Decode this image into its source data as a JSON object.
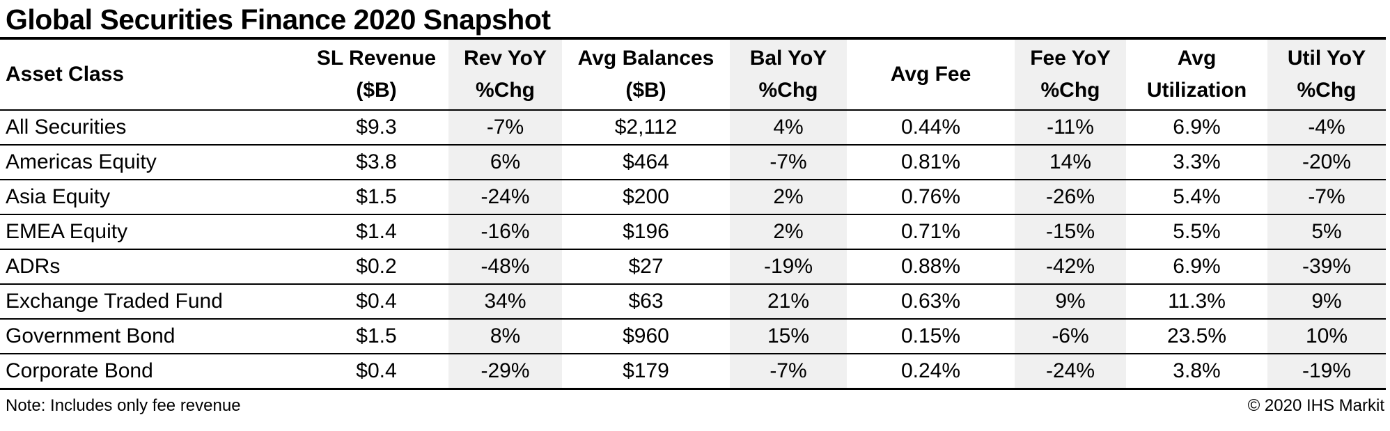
{
  "title": "Global Securities Finance 2020 Snapshot",
  "colors": {
    "background": "#ffffff",
    "text": "#000000",
    "border": "#000000",
    "shaded_column": "#f0f0f0"
  },
  "table": {
    "headers": [
      {
        "line1": "Asset Class",
        "line2": ""
      },
      {
        "line1": "SL Revenue",
        "line2": "($B)"
      },
      {
        "line1": "Rev YoY",
        "line2": "%Chg"
      },
      {
        "line1": "Avg Balances",
        "line2": "($B)"
      },
      {
        "line1": "Bal YoY",
        "line2": "%Chg"
      },
      {
        "line1": "Avg Fee",
        "line2": ""
      },
      {
        "line1": "Fee YoY",
        "line2": "%Chg"
      },
      {
        "line1": "Avg",
        "line2": "Utilization"
      },
      {
        "line1": "Util YoY",
        "line2": "%Chg"
      }
    ],
    "rows": [
      {
        "cells": [
          "All Securities",
          "$9.3",
          "-7%",
          "$2,112",
          "4%",
          "0.44%",
          "-11%",
          "6.9%",
          "-4%"
        ]
      },
      {
        "cells": [
          "Americas Equity",
          "$3.8",
          "6%",
          "$464",
          "-7%",
          "0.81%",
          "14%",
          "3.3%",
          "-20%"
        ]
      },
      {
        "cells": [
          "Asia Equity",
          "$1.5",
          "-24%",
          "$200",
          "2%",
          "0.76%",
          "-26%",
          "5.4%",
          "-7%"
        ]
      },
      {
        "cells": [
          "EMEA Equity",
          "$1.4",
          "-16%",
          "$196",
          "2%",
          "0.71%",
          "-15%",
          "5.5%",
          "5%"
        ]
      },
      {
        "cells": [
          "ADRs",
          "$0.2",
          "-48%",
          "$27",
          "-19%",
          "0.88%",
          "-42%",
          "6.9%",
          "-39%"
        ]
      },
      {
        "cells": [
          "Exchange Traded Fund",
          "$0.4",
          "34%",
          "$63",
          "21%",
          "0.63%",
          "9%",
          "11.3%",
          "9%"
        ]
      },
      {
        "cells": [
          "Government Bond",
          "$1.5",
          "8%",
          "$960",
          "15%",
          "0.15%",
          "-6%",
          "23.5%",
          "10%"
        ]
      },
      {
        "cells": [
          "Corporate Bond",
          "$0.4",
          "-29%",
          "$179",
          "-7%",
          "0.24%",
          "-24%",
          "3.8%",
          "-19%"
        ]
      }
    ]
  },
  "footer": {
    "note": "Note: Includes only fee revenue",
    "copyright": "© 2020 IHS Markit"
  },
  "chart_data": {
    "type": "table",
    "title": "Global Securities Finance 2020 Snapshot",
    "columns": [
      "Asset Class",
      "SL Revenue ($B)",
      "Rev YoY %Chg",
      "Avg Balances ($B)",
      "Bal YoY %Chg",
      "Avg Fee",
      "Fee YoY %Chg",
      "Avg Utilization",
      "Util YoY %Chg"
    ],
    "rows": [
      [
        "All Securities",
        9.3,
        -7,
        2112,
        4,
        0.44,
        -11,
        6.9,
        -4
      ],
      [
        "Americas Equity",
        3.8,
        6,
        464,
        -7,
        0.81,
        14,
        3.3,
        -20
      ],
      [
        "Asia Equity",
        1.5,
        -24,
        200,
        2,
        0.76,
        -26,
        5.4,
        -7
      ],
      [
        "EMEA Equity",
        1.4,
        -16,
        196,
        2,
        0.71,
        -15,
        5.5,
        5
      ],
      [
        "ADRs",
        0.2,
        -48,
        27,
        -19,
        0.88,
        -42,
        6.9,
        -39
      ],
      [
        "Exchange Traded Fund",
        0.4,
        34,
        63,
        21,
        0.63,
        9,
        11.3,
        9
      ],
      [
        "Government Bond",
        1.5,
        8,
        960,
        15,
        0.15,
        -6,
        23.5,
        10
      ],
      [
        "Corporate Bond",
        0.4,
        -29,
        179,
        -7,
        0.24,
        -24,
        3.8,
        -19
      ]
    ],
    "units": {
      "sl_revenue": "$B",
      "avg_balances": "$B",
      "yoy_and_fee_and_utilization": "%"
    },
    "shaded_columns": [
      "Rev YoY %Chg",
      "Bal YoY %Chg",
      "Fee YoY %Chg",
      "Util YoY %Chg"
    ],
    "note": "Note: Includes only fee revenue",
    "source": "© 2020 IHS Markit"
  }
}
